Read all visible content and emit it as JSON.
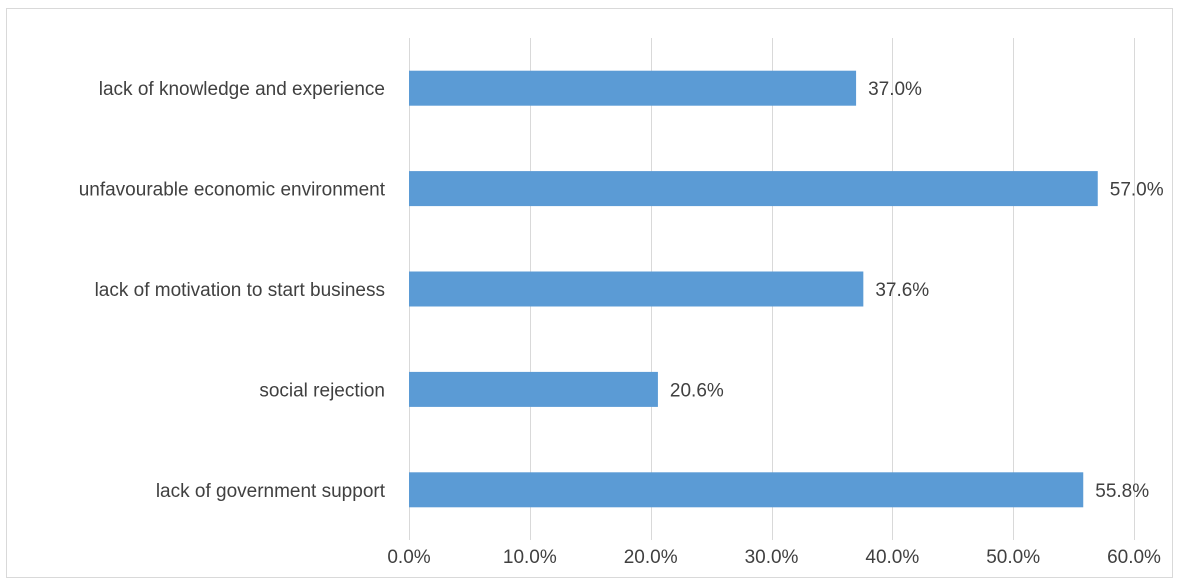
{
  "chart_data": {
    "type": "bar",
    "orientation": "horizontal",
    "categories": [
      "lack of knowledge and experience",
      "unfavourable economic environment",
      "lack of motivation to start business",
      "social rejection",
      "lack of government support"
    ],
    "values": [
      37.0,
      57.0,
      37.6,
      20.6,
      55.8
    ],
    "value_labels": [
      "37.0%",
      "57.0%",
      "37.6%",
      "20.6%",
      "55.8%"
    ],
    "xlim": [
      0,
      60
    ],
    "x_ticks": [
      0,
      10,
      20,
      30,
      40,
      50,
      60
    ],
    "x_tick_labels": [
      "0.0%",
      "10.0%",
      "20.0%",
      "30.0%",
      "40.0%",
      "50.0%",
      "60.0%"
    ],
    "grid": "vertical",
    "legend": "none",
    "bar_color": "#5b9bd5",
    "grid_color": "#d9d9d9",
    "text_color": "#404040"
  }
}
